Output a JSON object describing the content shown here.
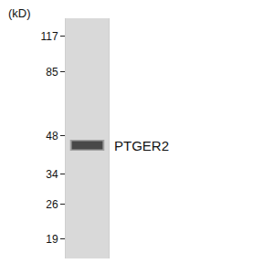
{
  "chart_data": {
    "type": "blot",
    "y_label": "(kD)",
    "log": "y",
    "ylim": [
      16,
      137
    ],
    "yticks": [
      117,
      85,
      48,
      34,
      26,
      19
    ],
    "bands": [
      {
        "label": "PTGER2",
        "value": 44
      }
    ]
  }
}
